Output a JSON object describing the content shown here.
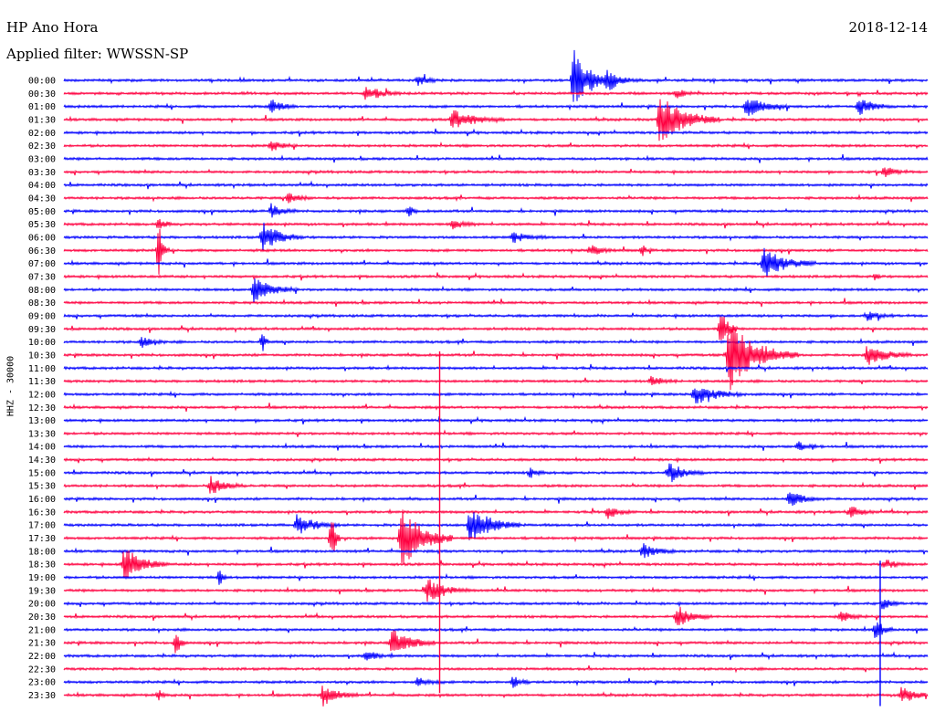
{
  "header": {
    "station": "HP Ano Hora",
    "date": "2018-12-14",
    "filter": "Applied filter: WWSSN-SP",
    "channel": "HHZ - 30000"
  },
  "colors": {
    "even_hour": "#0000ff",
    "half_hour": "#ff0040",
    "text": "#000000"
  },
  "chart_data": {
    "type": "helicorder",
    "title": "HP Ano Hora",
    "date": "2018-12-14",
    "filter": "WWSSN-SP",
    "ylabel": "HHZ - 30000",
    "row_interval_minutes": 30,
    "x_span_minutes": 30,
    "rows": [
      "00:00",
      "00:30",
      "01:00",
      "01:30",
      "02:00",
      "02:30",
      "03:00",
      "03:30",
      "04:00",
      "04:30",
      "05:00",
      "05:30",
      "06:00",
      "06:30",
      "07:00",
      "07:30",
      "08:00",
      "08:30",
      "09:00",
      "09:30",
      "10:00",
      "10:30",
      "11:00",
      "11:30",
      "12:00",
      "12:30",
      "13:00",
      "13:30",
      "14:00",
      "14:30",
      "15:00",
      "15:30",
      "16:00",
      "16:30",
      "17:00",
      "17:30",
      "18:00",
      "18:30",
      "19:00",
      "19:30",
      "20:00",
      "20:30",
      "21:00",
      "21:30",
      "22:00",
      "22:30",
      "23:00",
      "23:30"
    ],
    "events": [
      {
        "row": 0,
        "t": 0.59,
        "amp": 34,
        "dur": 0.05
      },
      {
        "row": 0,
        "t": 0.63,
        "amp": 9,
        "dur": 0.04
      },
      {
        "row": 0,
        "t": 0.41,
        "amp": 5,
        "dur": 0.03
      },
      {
        "row": 1,
        "t": 0.35,
        "amp": 9,
        "dur": 0.04
      },
      {
        "row": 1,
        "t": 0.71,
        "amp": 6,
        "dur": 0.02
      },
      {
        "row": 2,
        "t": 0.24,
        "amp": 8,
        "dur": 0.03
      },
      {
        "row": 2,
        "t": 0.79,
        "amp": 12,
        "dur": 0.05
      },
      {
        "row": 2,
        "t": 0.92,
        "amp": 10,
        "dur": 0.04
      },
      {
        "row": 3,
        "t": 0.45,
        "amp": 12,
        "dur": 0.06
      },
      {
        "row": 3,
        "t": 0.69,
        "amp": 28,
        "dur": 0.07
      },
      {
        "row": 5,
        "t": 0.24,
        "amp": 6,
        "dur": 0.03
      },
      {
        "row": 7,
        "t": 0.95,
        "amp": 6,
        "dur": 0.03
      },
      {
        "row": 9,
        "t": 0.26,
        "amp": 6,
        "dur": 0.03
      },
      {
        "row": 10,
        "t": 0.24,
        "amp": 8,
        "dur": 0.03
      },
      {
        "row": 10,
        "t": 0.4,
        "amp": 6,
        "dur": 0.01
      },
      {
        "row": 11,
        "t": 0.11,
        "amp": 6,
        "dur": 0.02
      },
      {
        "row": 11,
        "t": 0.45,
        "amp": 5,
        "dur": 0.03
      },
      {
        "row": 12,
        "t": 0.23,
        "amp": 16,
        "dur": 0.05
      },
      {
        "row": 12,
        "t": 0.52,
        "amp": 6,
        "dur": 0.04
      },
      {
        "row": 13,
        "t": 0.11,
        "amp": 30,
        "dur": 0.01
      },
      {
        "row": 13,
        "t": 0.61,
        "amp": 6,
        "dur": 0.03
      },
      {
        "row": 13,
        "t": 0.67,
        "amp": 6,
        "dur": 0.01
      },
      {
        "row": 14,
        "t": 0.81,
        "amp": 18,
        "dur": 0.06
      },
      {
        "row": 15,
        "t": 0.94,
        "amp": 5,
        "dur": 0.01
      },
      {
        "row": 16,
        "t": 0.22,
        "amp": 14,
        "dur": 0.05
      },
      {
        "row": 18,
        "t": 0.93,
        "amp": 5,
        "dur": 0.03
      },
      {
        "row": 19,
        "t": 0.76,
        "amp": 26,
        "dur": 0.02
      },
      {
        "row": 20,
        "t": 0.09,
        "amp": 6,
        "dur": 0.03
      },
      {
        "row": 20,
        "t": 0.23,
        "amp": 10,
        "dur": 0.01
      },
      {
        "row": 21,
        "t": 0.77,
        "amp": 40,
        "dur": 0.08
      },
      {
        "row": 21,
        "t": 0.93,
        "amp": 12,
        "dur": 0.05
      },
      {
        "row": 23,
        "t": 0.68,
        "amp": 6,
        "dur": 0.03
      },
      {
        "row": 24,
        "t": 0.73,
        "amp": 12,
        "dur": 0.06
      },
      {
        "row": 28,
        "t": 0.85,
        "amp": 5,
        "dur": 0.03
      },
      {
        "row": 30,
        "t": 0.7,
        "amp": 12,
        "dur": 0.04
      },
      {
        "row": 30,
        "t": 0.54,
        "amp": 5,
        "dur": 0.02
      },
      {
        "row": 31,
        "t": 0.17,
        "amp": 10,
        "dur": 0.04
      },
      {
        "row": 32,
        "t": 0.84,
        "amp": 10,
        "dur": 0.04
      },
      {
        "row": 33,
        "t": 0.63,
        "amp": 7,
        "dur": 0.03
      },
      {
        "row": 33,
        "t": 0.91,
        "amp": 7,
        "dur": 0.03
      },
      {
        "row": 34,
        "t": 0.27,
        "amp": 12,
        "dur": 0.05
      },
      {
        "row": 34,
        "t": 0.47,
        "amp": 22,
        "dur": 0.06
      },
      {
        "row": 35,
        "t": 0.31,
        "amp": 35,
        "dur": 0.01
      },
      {
        "row": 35,
        "t": 0.39,
        "amp": 38,
        "dur": 0.06
      },
      {
        "row": 36,
        "t": 0.67,
        "amp": 8,
        "dur": 0.04
      },
      {
        "row": 37,
        "t": 0.07,
        "amp": 20,
        "dur": 0.05
      },
      {
        "row": 37,
        "t": 0.95,
        "amp": 6,
        "dur": 0.03
      },
      {
        "row": 38,
        "t": 0.18,
        "amp": 10,
        "dur": 0.01
      },
      {
        "row": 39,
        "t": 0.42,
        "amp": 14,
        "dur": 0.05
      },
      {
        "row": 40,
        "t": 0.95,
        "amp": 6,
        "dur": 0.02
      },
      {
        "row": 41,
        "t": 0.71,
        "amp": 12,
        "dur": 0.04
      },
      {
        "row": 41,
        "t": 0.9,
        "amp": 6,
        "dur": 0.03
      },
      {
        "row": 42,
        "t": 0.94,
        "amp": 12,
        "dur": 0.02
      },
      {
        "row": 43,
        "t": 0.13,
        "amp": 18,
        "dur": 0.01
      },
      {
        "row": 43,
        "t": 0.38,
        "amp": 16,
        "dur": 0.05
      },
      {
        "row": 44,
        "t": 0.35,
        "amp": 6,
        "dur": 0.03
      },
      {
        "row": 46,
        "t": 0.52,
        "amp": 8,
        "dur": 0.02
      },
      {
        "row": 46,
        "t": 0.41,
        "amp": 5,
        "dur": 0.03
      },
      {
        "row": 47,
        "t": 0.3,
        "amp": 12,
        "dur": 0.04
      },
      {
        "row": 47,
        "t": 0.11,
        "amp": 6,
        "dur": 0.01
      },
      {
        "row": 47,
        "t": 0.97,
        "amp": 10,
        "dur": 0.04
      }
    ],
    "spikes": [
      {
        "row_top": 21,
        "row_bottom": 46,
        "t": 0.435
      },
      {
        "row_top": 37,
        "row_bottom": 47,
        "t": 0.945
      }
    ]
  }
}
